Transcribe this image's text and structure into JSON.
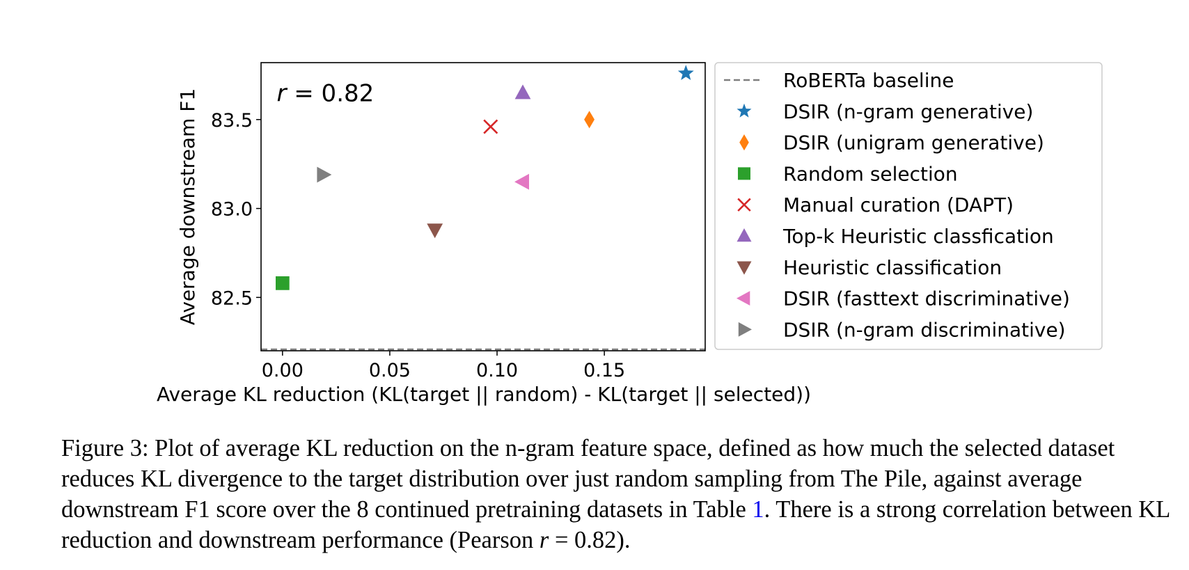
{
  "chart_data": {
    "type": "scatter",
    "title": "",
    "xlabel": "Average KL reduction (KL(target || random) - KL(target || selected))",
    "ylabel": "Average downstream F1",
    "xlim": [
      -0.01,
      0.197
    ],
    "ylim": [
      82.2,
      83.82
    ],
    "xticks": [
      "0.00",
      "0.05",
      "0.10",
      "0.15"
    ],
    "xtick_values": [
      0.0,
      0.05,
      0.1,
      0.15
    ],
    "yticks": [
      "82.5",
      "83.0",
      "83.5"
    ],
    "ytick_values": [
      82.5,
      83.0,
      83.5
    ],
    "grid": false,
    "legend_position": "right",
    "annotation": {
      "italic": "r",
      "rest": " = 0.82",
      "x": 0.019,
      "y": 83.65
    },
    "baseline": {
      "name": "RoBERTa baseline",
      "y": 82.2,
      "color": "#7f7f7f",
      "style": "dashed"
    },
    "series": [
      {
        "name": "DSIR (n-gram generative)",
        "marker": "star",
        "color": "#1f77b4",
        "x": 0.188,
        "y": 83.76
      },
      {
        "name": "DSIR (unigram generative)",
        "marker": "diamond",
        "color": "#ff7f0e",
        "x": 0.143,
        "y": 83.5
      },
      {
        "name": "Random selection",
        "marker": "square",
        "color": "#2ca02c",
        "x": 0.0,
        "y": 82.58
      },
      {
        "name": "Manual curation (DAPT)",
        "marker": "x",
        "color": "#d62728",
        "x": 0.097,
        "y": 83.46
      },
      {
        "name": "Top-k Heuristic classfication",
        "marker": "triangle-up",
        "color": "#9467bd",
        "x": 0.112,
        "y": 83.65
      },
      {
        "name": "Heuristic classification",
        "marker": "triangle-down",
        "color": "#8c564b",
        "x": 0.071,
        "y": 82.88
      },
      {
        "name": "DSIR (fasttext discriminative)",
        "marker": "triangle-left",
        "color": "#e377c2",
        "x": 0.112,
        "y": 83.15
      },
      {
        "name": "DSIR (n-gram discriminative)",
        "marker": "triangle-right",
        "color": "#7f7f7f",
        "x": 0.019,
        "y": 83.19
      }
    ]
  },
  "caption": {
    "part1": "Figure 3: Plot of average KL reduction on the n-gram feature space, defined as how much the selected dataset reduces KL divergence to the target distribution over just random sampling from The Pile, against average downstream F1 score over the 8 continued pretraining datasets in Table ",
    "ref": "1",
    "part2": ". There is a strong correlation between KL reduction and downstream performance (Pearson ",
    "r": "r",
    "part3": " = 0.82)."
  }
}
